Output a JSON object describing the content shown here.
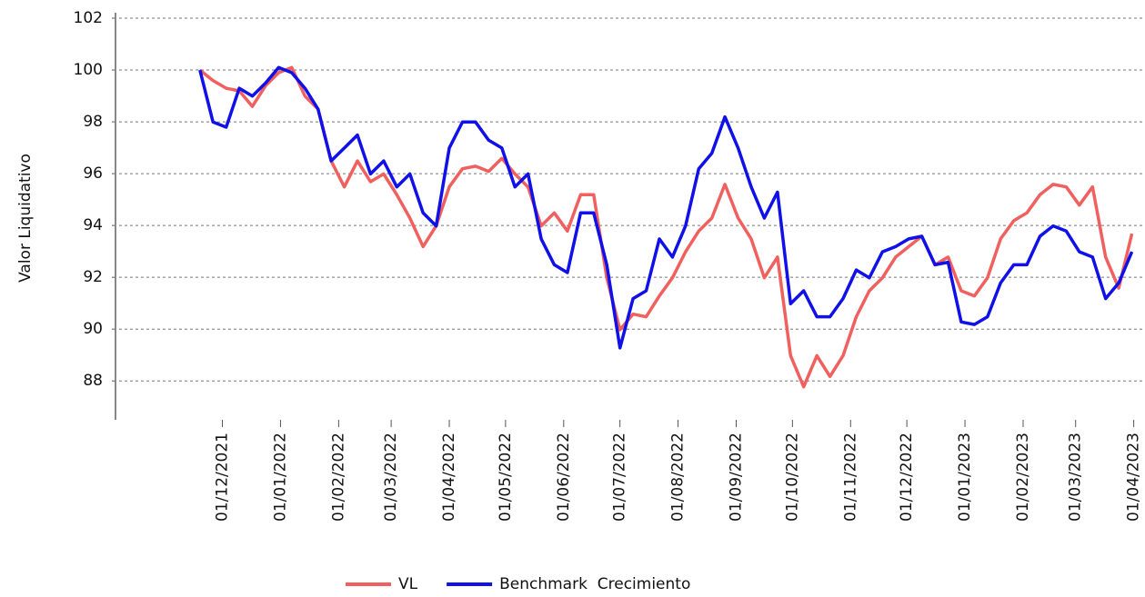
{
  "chart_data": {
    "type": "line",
    "y_label": "Valor Liquidativo",
    "x": [
      "2021-11-19",
      "2021-11-26",
      "2021-12-03",
      "2021-12-10",
      "2021-12-17",
      "2021-12-24",
      "2021-12-31",
      "2022-01-07",
      "2022-01-14",
      "2022-01-21",
      "2022-01-28",
      "2022-02-04",
      "2022-02-11",
      "2022-02-18",
      "2022-02-25",
      "2022-03-04",
      "2022-03-11",
      "2022-03-18",
      "2022-03-25",
      "2022-04-01",
      "2022-04-08",
      "2022-04-15",
      "2022-04-22",
      "2022-04-29",
      "2022-05-06",
      "2022-05-13",
      "2022-05-20",
      "2022-05-27",
      "2022-06-03",
      "2022-06-10",
      "2022-06-17",
      "2022-06-24",
      "2022-07-01",
      "2022-07-08",
      "2022-07-15",
      "2022-07-22",
      "2022-07-29",
      "2022-08-05",
      "2022-08-12",
      "2022-08-19",
      "2022-08-26",
      "2022-09-02",
      "2022-09-09",
      "2022-09-16",
      "2022-09-23",
      "2022-09-30",
      "2022-10-07",
      "2022-10-14",
      "2022-10-21",
      "2022-10-28",
      "2022-11-04",
      "2022-11-11",
      "2022-11-18",
      "2022-11-25",
      "2022-12-02",
      "2022-12-09",
      "2022-12-16",
      "2022-12-23",
      "2022-12-30",
      "2023-01-06",
      "2023-01-13",
      "2023-01-20",
      "2023-01-27",
      "2023-02-03",
      "2023-02-10",
      "2023-02-17",
      "2023-02-24",
      "2023-03-03",
      "2023-03-10",
      "2023-03-17",
      "2023-03-24",
      "2023-03-31"
    ],
    "series": [
      {
        "name": "VL",
        "color": "#f0605e",
        "values": [
          100,
          99.6,
          99.3,
          99.2,
          98.6,
          99.4,
          99.9,
          100.1,
          99.0,
          98.5,
          96.5,
          95.5,
          96.5,
          95.7,
          96.0,
          95.2,
          94.3,
          93.2,
          94.0,
          95.5,
          96.2,
          96.3,
          96.1,
          96.6,
          96.0,
          95.5,
          94.0,
          94.5,
          93.8,
          95.2,
          95.2,
          92.0,
          90.0,
          90.6,
          90.5,
          91.3,
          92.0,
          93.0,
          93.8,
          94.3,
          95.6,
          94.3,
          93.5,
          92.0,
          92.8,
          89.0,
          87.8,
          89.0,
          88.2,
          89.0,
          90.5,
          91.5,
          92.0,
          92.8,
          93.2,
          93.6,
          92.5,
          92.8,
          91.5,
          91.3,
          92.0,
          93.5,
          94.2,
          94.5,
          95.2,
          95.6,
          95.5,
          94.8,
          95.5,
          92.8,
          91.6,
          93.7
        ]
      },
      {
        "name": "Benchmark  Crecimiento",
        "color": "#1010e8",
        "values": [
          100,
          98.0,
          97.8,
          99.3,
          99.0,
          99.5,
          100.1,
          99.9,
          99.3,
          98.5,
          96.5,
          97.0,
          97.5,
          96.0,
          96.5,
          95.5,
          96.0,
          94.5,
          94.0,
          97.0,
          98.0,
          98.0,
          97.3,
          97.0,
          95.5,
          96.0,
          93.5,
          92.5,
          92.2,
          94.5,
          94.5,
          92.5,
          89.3,
          91.2,
          91.5,
          93.5,
          92.8,
          94.0,
          96.2,
          96.8,
          98.2,
          97.0,
          95.5,
          94.3,
          95.3,
          91.0,
          91.5,
          90.5,
          90.5,
          91.2,
          92.3,
          92.0,
          93.0,
          93.2,
          93.5,
          93.6,
          92.5,
          92.6,
          90.3,
          90.2,
          90.5,
          91.8,
          92.5,
          92.5,
          93.6,
          94.0,
          93.8,
          93.0,
          92.8,
          91.2,
          91.8,
          93.0
        ]
      }
    ],
    "xlim": [
      "2021-10-05",
      "2023-04-07"
    ],
    "xticks": [
      {
        "value": "2021-12-01",
        "label": "01/12/2021"
      },
      {
        "value": "2022-01-01",
        "label": "01/01/2022"
      },
      {
        "value": "2022-02-01",
        "label": "01/02/2022"
      },
      {
        "value": "2022-03-01",
        "label": "01/03/2022"
      },
      {
        "value": "2022-04-01",
        "label": "01/04/2022"
      },
      {
        "value": "2022-05-01",
        "label": "01/05/2022"
      },
      {
        "value": "2022-06-01",
        "label": "01/06/2022"
      },
      {
        "value": "2022-07-01",
        "label": "01/07/2022"
      },
      {
        "value": "2022-08-01",
        "label": "01/08/2022"
      },
      {
        "value": "2022-09-01",
        "label": "01/09/2022"
      },
      {
        "value": "2022-10-01",
        "label": "01/10/2022"
      },
      {
        "value": "2022-11-01",
        "label": "01/11/2022"
      },
      {
        "value": "2022-12-01",
        "label": "01/12/2022"
      },
      {
        "value": "2023-01-01",
        "label": "01/01/2023"
      },
      {
        "value": "2023-02-01",
        "label": "01/02/2023"
      },
      {
        "value": "2023-03-01",
        "label": "01/03/2023"
      },
      {
        "value": "2023-04-01",
        "label": "01/04/2023"
      }
    ],
    "ylim": [
      86.5,
      102
    ],
    "yticks": [
      88,
      90,
      92,
      94,
      96,
      98,
      100,
      102
    ],
    "grid": true
  }
}
